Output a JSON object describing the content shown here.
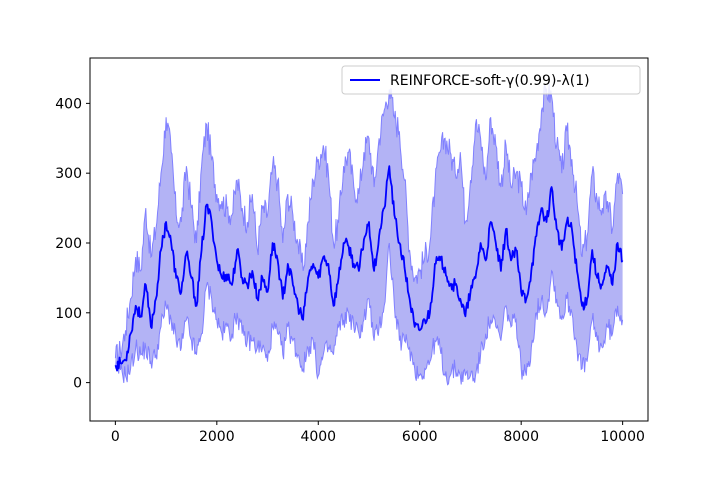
{
  "chart_data": {
    "type": "line",
    "title": "",
    "xlabel": "",
    "ylabel": "",
    "xlim": [
      -500,
      10500
    ],
    "ylim": [
      -55,
      465
    ],
    "xticks": [
      0,
      2000,
      4000,
      6000,
      8000,
      10000
    ],
    "xtick_labels": [
      "0",
      "2000",
      "4000",
      "6000",
      "8000",
      "10000"
    ],
    "yticks": [
      0,
      100,
      200,
      300,
      400
    ],
    "ytick_labels": [
      "0",
      "100",
      "200",
      "300",
      "400"
    ],
    "grid": false,
    "legend_position": "top-right",
    "series": [
      {
        "name": "REINFORCE-soft-γ(0.99)-λ(1)",
        "color": "#0000ff",
        "band_fill_color": "#b3b3f5",
        "band_edge_color": "#8080ff",
        "x": [
          0,
          100,
          200,
          300,
          400,
          500,
          600,
          700,
          800,
          900,
          1000,
          1100,
          1200,
          1300,
          1400,
          1500,
          1600,
          1700,
          1800,
          1900,
          2000,
          2100,
          2200,
          2300,
          2400,
          2500,
          2600,
          2700,
          2800,
          2900,
          3000,
          3100,
          3200,
          3300,
          3400,
          3500,
          3600,
          3700,
          3800,
          3900,
          4000,
          4100,
          4200,
          4300,
          4400,
          4500,
          4600,
          4700,
          4800,
          4900,
          5000,
          5100,
          5200,
          5300,
          5400,
          5500,
          5600,
          5700,
          5800,
          5900,
          6000,
          6100,
          6200,
          6300,
          6400,
          6500,
          6600,
          6700,
          6800,
          6900,
          7000,
          7100,
          7200,
          7300,
          7400,
          7500,
          7600,
          7700,
          7800,
          7900,
          8000,
          8100,
          8200,
          8300,
          8400,
          8500,
          8600,
          8700,
          8800,
          8900,
          9000,
          9100,
          9200,
          9300,
          9400,
          9500,
          9600,
          9700,
          9800,
          9900,
          10000
        ],
        "mean": [
          25,
          28,
          32,
          70,
          110,
          95,
          140,
          80,
          120,
          190,
          230,
          200,
          150,
          130,
          185,
          150,
          110,
          190,
          255,
          230,
          175,
          150,
          155,
          140,
          190,
          150,
          140,
          160,
          120,
          150,
          130,
          200,
          175,
          120,
          170,
          140,
          110,
          90,
          150,
          170,
          150,
          180,
          170,
          110,
          150,
          200,
          195,
          170,
          160,
          205,
          230,
          160,
          210,
          250,
          310,
          240,
          200,
          165,
          120,
          80,
          75,
          90,
          100,
          170,
          175,
          165,
          140,
          140,
          120,
          95,
          130,
          150,
          200,
          175,
          230,
          200,
          160,
          220,
          175,
          190,
          130,
          120,
          160,
          210,
          250,
          230,
          280,
          220,
          190,
          230,
          220,
          160,
          110,
          120,
          190,
          150,
          140,
          165,
          140,
          200,
          175
        ],
        "upper": [
          35,
          45,
          75,
          120,
          180,
          160,
          250,
          180,
          220,
          300,
          380,
          330,
          240,
          230,
          310,
          250,
          200,
          310,
          370,
          320,
          270,
          260,
          250,
          240,
          290,
          250,
          230,
          270,
          190,
          250,
          240,
          310,
          290,
          200,
          270,
          240,
          200,
          160,
          230,
          290,
          320,
          340,
          300,
          200,
          230,
          310,
          330,
          280,
          270,
          330,
          350,
          280,
          350,
          390,
          420,
          380,
          360,
          290,
          190,
          150,
          160,
          180,
          200,
          280,
          330,
          350,
          330,
          300,
          330,
          230,
          290,
          370,
          350,
          290,
          380,
          340,
          280,
          340,
          280,
          300,
          280,
          240,
          300,
          330,
          390,
          420,
          410,
          340,
          300,
          360,
          320,
          260,
          180,
          210,
          300,
          260,
          250,
          260,
          220,
          300,
          270
        ],
        "lower": [
          20,
          18,
          10,
          20,
          50,
          40,
          50,
          30,
          40,
          80,
          110,
          90,
          60,
          50,
          90,
          60,
          40,
          70,
          140,
          120,
          90,
          70,
          80,
          70,
          100,
          70,
          60,
          60,
          50,
          50,
          30,
          80,
          70,
          40,
          80,
          60,
          40,
          20,
          50,
          60,
          10,
          40,
          50,
          40,
          80,
          90,
          100,
          80,
          70,
          90,
          120,
          60,
          80,
          110,
          200,
          110,
          60,
          60,
          50,
          20,
          10,
          20,
          30,
          60,
          50,
          10,
          10,
          20,
          10,
          10,
          10,
          10,
          40,
          70,
          90,
          80,
          60,
          110,
          80,
          90,
          20,
          10,
          50,
          100,
          120,
          100,
          160,
          120,
          90,
          120,
          100,
          50,
          20,
          30,
          90,
          60,
          50,
          80,
          70,
          110,
          90
        ]
      }
    ]
  }
}
